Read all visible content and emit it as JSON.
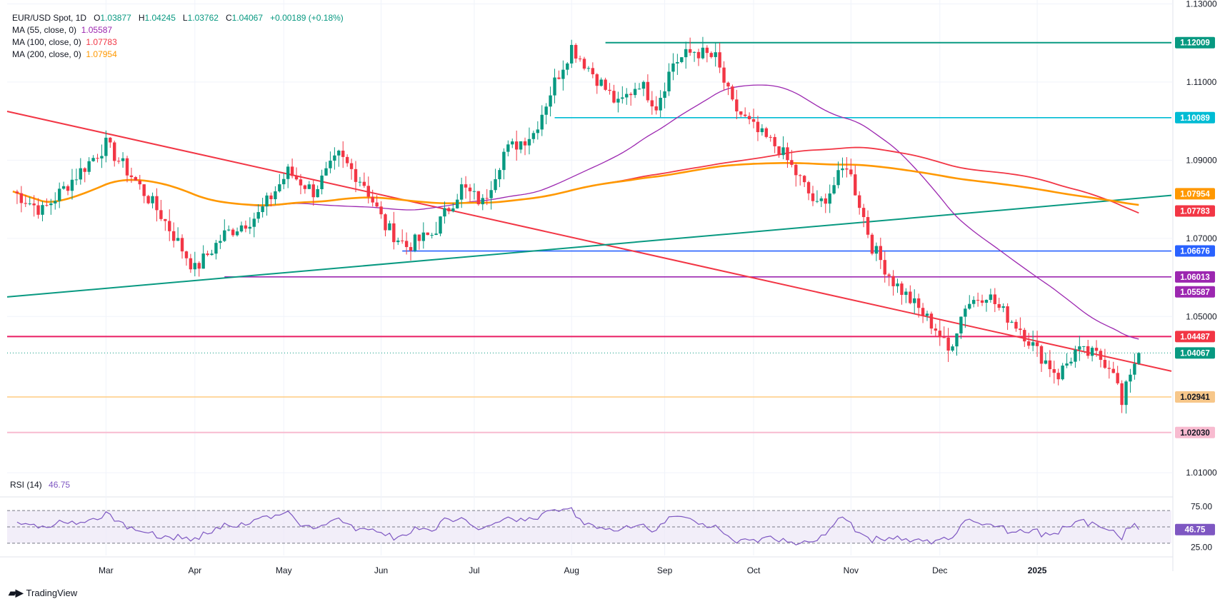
{
  "legend": {
    "symbol": "EUR/USD Spot, 1D",
    "open_label": "O",
    "open": "1.03877",
    "high_label": "H",
    "high": "1.04245",
    "low_label": "L",
    "low": "1.03762",
    "close_label": "C",
    "close": "1.04067",
    "change": "+0.00189 (+0.18%)",
    "ma55_label": "MA (55, close, 0)",
    "ma55_value": "1.05587",
    "ma100_label": "MA (100, close, 0)",
    "ma100_value": "1.07783",
    "ma200_label": "MA (200, close, 0)",
    "ma200_value": "1.07954"
  },
  "rsi": {
    "label": "RSI (14)",
    "value": "46.75"
  },
  "brand": "TradingView",
  "colors": {
    "up": "#089981",
    "down": "#f23645",
    "ma55": "#9c27b0",
    "ma100": "#f23645",
    "ma200": "#ff9800",
    "rsi": "#7e57c2",
    "grid": "#f0f3fa"
  },
  "chart_data": {
    "type": "candlestick",
    "x_axis": {
      "months": [
        "Mar",
        "Apr",
        "May",
        "Jun",
        "Jul",
        "Aug",
        "Sep",
        "Oct",
        "Nov",
        "Dec",
        "2025"
      ]
    },
    "y_axis": {
      "ticks": [
        "1.13000",
        "1.11000",
        "1.09000",
        "1.07000",
        "1.05000",
        "1.01000"
      ],
      "range": [
        1.004,
        1.131
      ]
    },
    "price_labels": [
      {
        "value": "1.12009",
        "color": "#089981"
      },
      {
        "value": "1.10089",
        "color": "#00bcd4"
      },
      {
        "value": "1.07954",
        "color": "#ff9800"
      },
      {
        "value": "1.07783",
        "color": "#f23645"
      },
      {
        "value": "1.06676",
        "color": "#2962ff"
      },
      {
        "value": "1.06013",
        "color": "#9c27b0"
      },
      {
        "value": "1.05587",
        "color": "#9c27b0"
      },
      {
        "value": "1.04487",
        "color": "#f23645"
      },
      {
        "value": "1.04067",
        "color": "#089981"
      },
      {
        "value": "1.02941",
        "color": "#f7c78a"
      },
      {
        "value": "1.02030",
        "color": "#f8bbd0"
      }
    ],
    "horizontal_levels": [
      1.12009,
      1.10089,
      1.06676,
      1.06013,
      1.04487,
      1.02941,
      1.0203
    ],
    "series": [
      {
        "name": "MA (55, close, 0)",
        "value": 1.05587
      },
      {
        "name": "MA (100, close, 0)",
        "value": 1.07783
      },
      {
        "name": "MA (200, close, 0)",
        "value": 1.07954
      }
    ],
    "rsi_axis": {
      "ticks": [
        "75.00",
        "25.00"
      ],
      "range": [
        15,
        85
      ],
      "bands": [
        70,
        50,
        30
      ]
    },
    "price_path": [
      [
        0,
        1.082
      ],
      [
        7,
        1.077
      ],
      [
        14,
        1.085
      ],
      [
        22,
        1.094
      ],
      [
        28,
        1.086
      ],
      [
        35,
        1.076
      ],
      [
        43,
        1.062
      ],
      [
        50,
        1.071
      ],
      [
        58,
        1.076
      ],
      [
        65,
        1.087
      ],
      [
        71,
        1.082
      ],
      [
        77,
        1.091
      ],
      [
        83,
        1.084
      ],
      [
        88,
        1.073
      ],
      [
        93,
        1.068
      ],
      [
        99,
        1.071
      ],
      [
        106,
        1.083
      ],
      [
        111,
        1.079
      ],
      [
        116,
        1.092
      ],
      [
        123,
        1.097
      ],
      [
        128,
        1.11
      ],
      [
        132,
        1.119
      ],
      [
        138,
        1.111
      ],
      [
        143,
        1.104
      ],
      [
        148,
        1.11
      ],
      [
        152,
        1.104
      ],
      [
        156,
        1.115
      ],
      [
        161,
        1.118
      ],
      [
        166,
        1.116
      ],
      [
        170,
        1.104
      ],
      [
        176,
        1.097
      ],
      [
        181,
        1.093
      ],
      [
        186,
        1.085
      ],
      [
        190,
        1.078
      ],
      [
        193,
        1.082
      ],
      [
        197,
        1.089
      ],
      [
        200,
        1.079
      ],
      [
        203,
        1.068
      ],
      [
        208,
        1.059
      ],
      [
        213,
        1.053
      ],
      [
        218,
        1.047
      ],
      [
        221,
        1.041
      ],
      [
        225,
        1.053
      ],
      [
        230,
        1.056
      ],
      [
        233,
        1.052
      ],
      [
        238,
        1.047
      ],
      [
        242,
        1.041
      ],
      [
        247,
        1.035
      ],
      [
        251,
        1.041
      ],
      [
        256,
        1.04
      ],
      [
        260,
        1.037
      ],
      [
        262,
        1.027
      ],
      [
        264,
        1.036
      ],
      [
        266,
        1.041
      ]
    ]
  }
}
